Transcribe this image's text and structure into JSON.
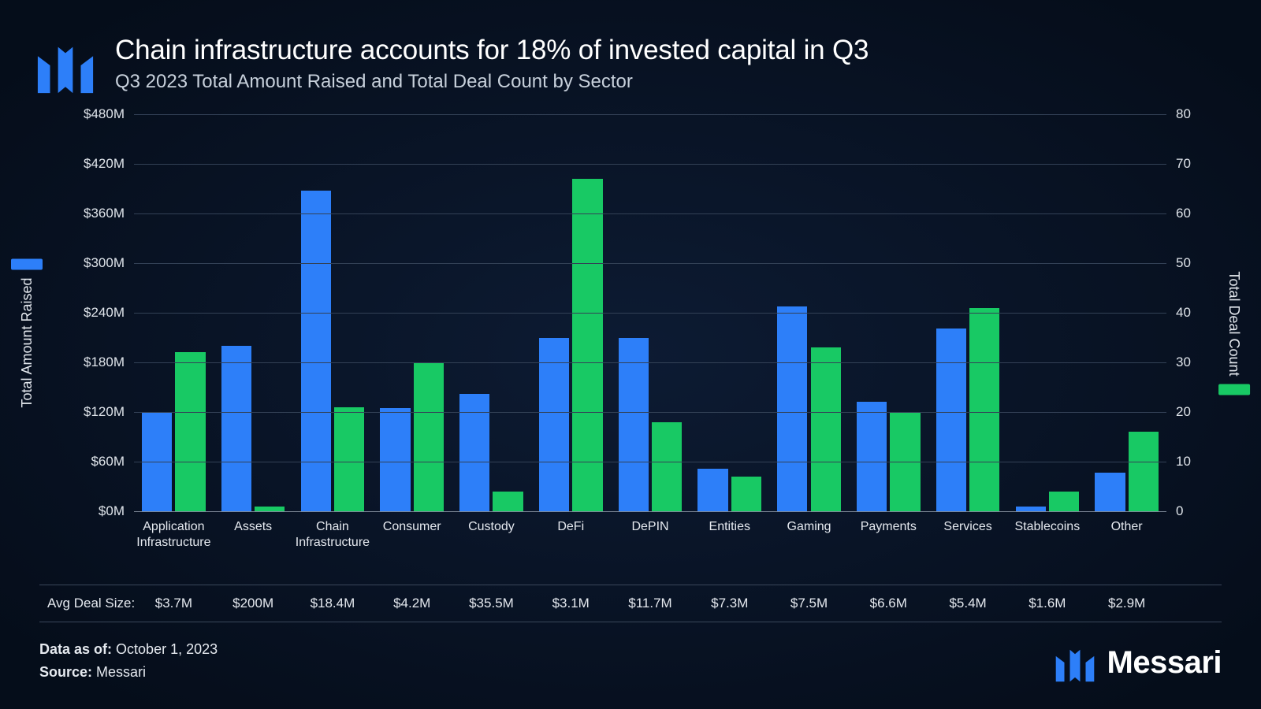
{
  "header": {
    "title": "Chain infrastructure accounts for 18% of invested capital in Q3",
    "subtitle": "Q3 2023 Total Amount Raised and Total Deal Count by Sector"
  },
  "brand": {
    "name": "Messari",
    "logo_color": "#2d7ff9",
    "name_color": "#ffffff"
  },
  "chart": {
    "type": "grouped-bar-dual-axis",
    "background": "radial-gradient(#0d1b33,#050d1a)",
    "grid_color": "#334156",
    "axis_line_color": "#7f8a99",
    "text_color": "#e5e9ef",
    "left_axis": {
      "title": "Total Amount Raised",
      "min": 0,
      "max": 480,
      "step": 60,
      "tick_prefix": "$",
      "tick_suffix": "M",
      "color": "#2d7ff9"
    },
    "right_axis": {
      "title": "Total Deal Count",
      "min": 0,
      "max": 80,
      "step": 10,
      "color": "#18c964"
    },
    "series": {
      "amount": {
        "label": "Total Amount Raised",
        "color": "#2d7ff9",
        "axis": "left"
      },
      "deals": {
        "label": "Total Deal Count",
        "color": "#18c964",
        "axis": "right"
      }
    },
    "bar_width_ratio": 0.38,
    "group_inner_gap_ratio": 0.04,
    "categories": [
      {
        "label": "Application Infrastructure",
        "amount": 120,
        "deals": 32
      },
      {
        "label": "Assets",
        "amount": 200,
        "deals": 1
      },
      {
        "label": "Chain Infrastructure",
        "amount": 388,
        "deals": 21
      },
      {
        "label": "Consumer",
        "amount": 125,
        "deals": 30
      },
      {
        "label": "Custody",
        "amount": 142,
        "deals": 4
      },
      {
        "label": "DeFi",
        "amount": 210,
        "deals": 67
      },
      {
        "label": "DePIN",
        "amount": 210,
        "deals": 18
      },
      {
        "label": "Entities",
        "amount": 51,
        "deals": 7
      },
      {
        "label": "Gaming",
        "amount": 248,
        "deals": 33
      },
      {
        "label": "Payments",
        "amount": 132,
        "deals": 20
      },
      {
        "label": "Services",
        "amount": 221,
        "deals": 41
      },
      {
        "label": "Stablecoins",
        "amount": 6,
        "deals": 4
      },
      {
        "label": "Other",
        "amount": 47,
        "deals": 16
      }
    ]
  },
  "avg_row": {
    "label": "Avg Deal Size:",
    "values": [
      "$3.7M",
      "$200M",
      "$18.4M",
      "$4.2M",
      "$35.5M",
      "$3.1M",
      "$11.7M",
      "$7.3M",
      "$7.5M",
      "$6.6M",
      "$5.4M",
      "$1.6M",
      "$2.9M"
    ]
  },
  "footer": {
    "data_as_of_label": "Data as of:",
    "data_as_of_value": "October 1, 2023",
    "source_label": "Source:",
    "source_value": "Messari"
  }
}
